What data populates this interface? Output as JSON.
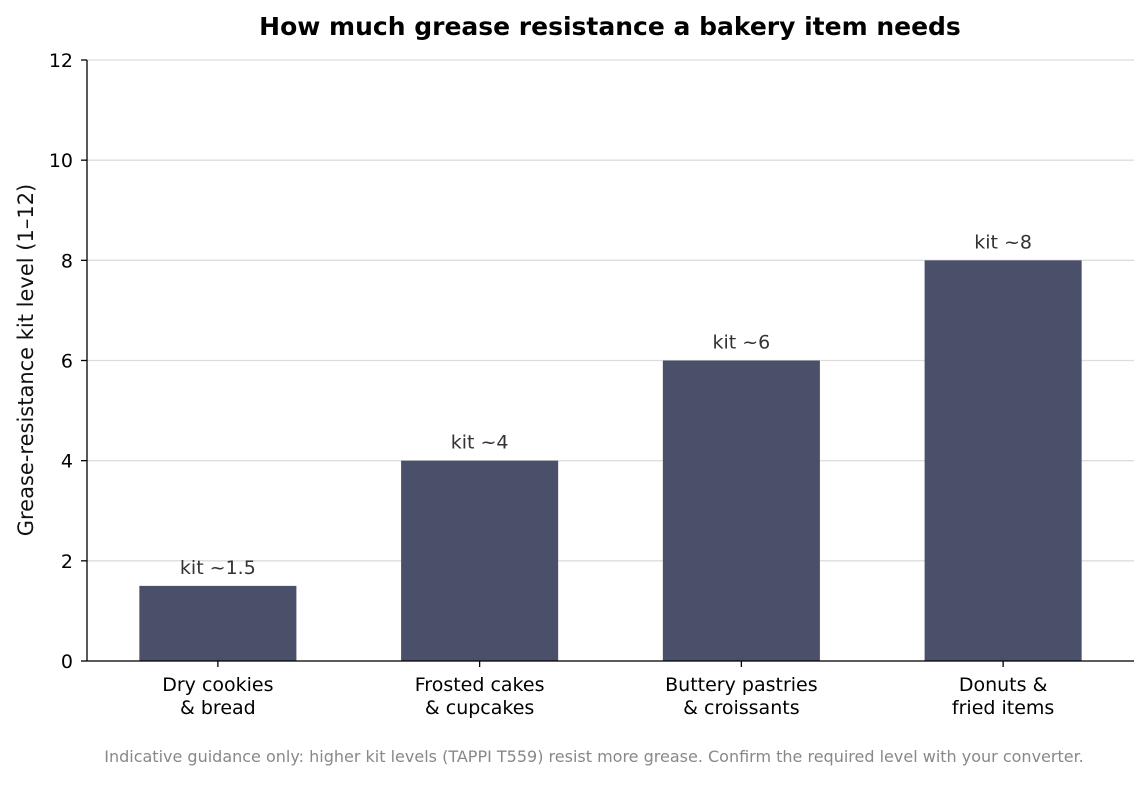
{
  "chart_data": {
    "type": "bar",
    "title": "How much grease resistance a bakery item needs",
    "xlabel": "",
    "ylabel": "Grease-resistance kit level (1–12)",
    "ylim": [
      0,
      12
    ],
    "yticks": [
      0,
      2,
      4,
      6,
      8,
      10,
      12
    ],
    "grid": true,
    "categories": [
      [
        "Dry cookies",
        "& bread"
      ],
      [
        "Frosted cakes",
        "& cupcakes"
      ],
      [
        "Buttery pastries",
        "& croissants"
      ],
      [
        "Donuts &",
        "fried items"
      ]
    ],
    "values": [
      1.5,
      4,
      6,
      8
    ],
    "data_labels": [
      "kit ~1.5",
      "kit ~4",
      "kit ~6",
      "kit ~8"
    ],
    "bar_color": "#4a4f6a",
    "footnote": "Indicative guidance only: higher kit levels (TAPPI T559) resist more grease. Confirm the required level with your converter."
  }
}
